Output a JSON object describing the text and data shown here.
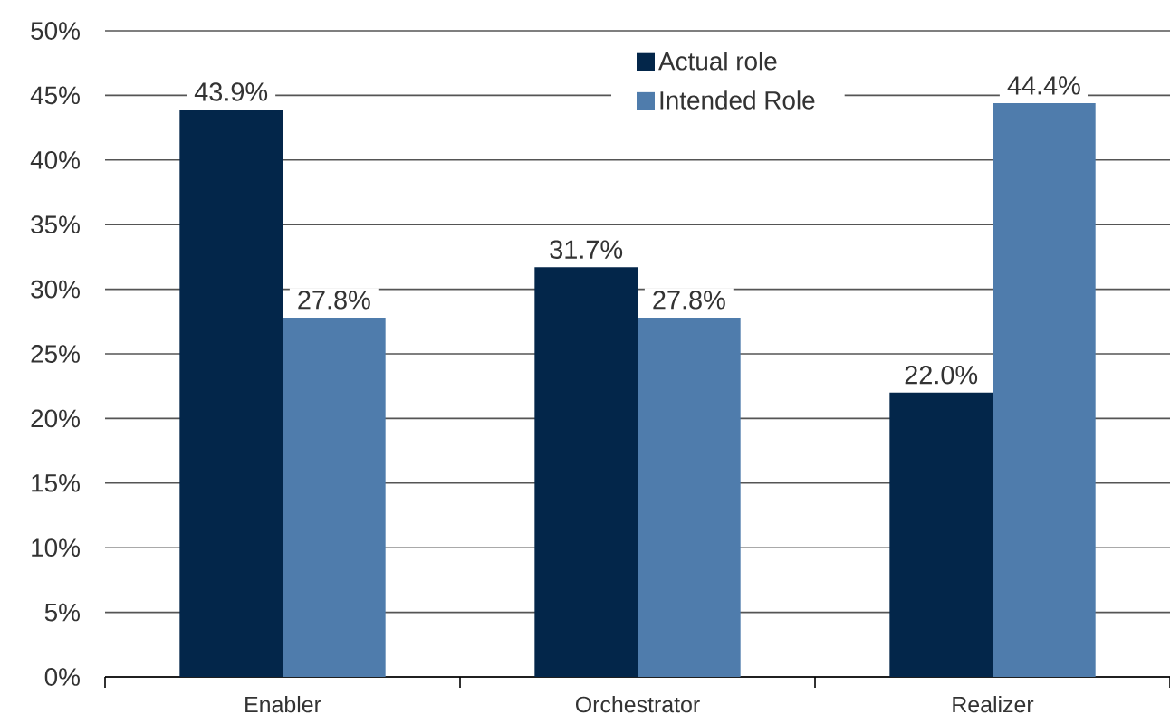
{
  "chart_data": {
    "type": "bar",
    "categories": [
      "Enabler",
      "Orchestrator",
      "Realizer"
    ],
    "series": [
      {
        "name": "Actual role",
        "color": "#03264a",
        "values": [
          43.9,
          31.7,
          22.0
        ],
        "value_labels": [
          "43.9%",
          "31.7%",
          "22.0%"
        ]
      },
      {
        "name": "Intended Role",
        "color": "#4f7cac",
        "values": [
          27.8,
          27.8,
          44.4
        ],
        "value_labels": [
          "27.8%",
          "27.8%",
          "44.4%"
        ]
      }
    ],
    "ylim": [
      0,
      50
    ],
    "yticks": [
      {
        "value": 0,
        "label": "0%"
      },
      {
        "value": 5,
        "label": "5%"
      },
      {
        "value": 10,
        "label": "10%"
      },
      {
        "value": 15,
        "label": "15%"
      },
      {
        "value": 20,
        "label": "20%"
      },
      {
        "value": 25,
        "label": "25%"
      },
      {
        "value": 30,
        "label": "30%"
      },
      {
        "value": 35,
        "label": "35%"
      },
      {
        "value": 40,
        "label": "40%"
      },
      {
        "value": 45,
        "label": "45%"
      },
      {
        "value": 50,
        "label": "50%"
      }
    ],
    "grid": "y",
    "legend": "top"
  }
}
